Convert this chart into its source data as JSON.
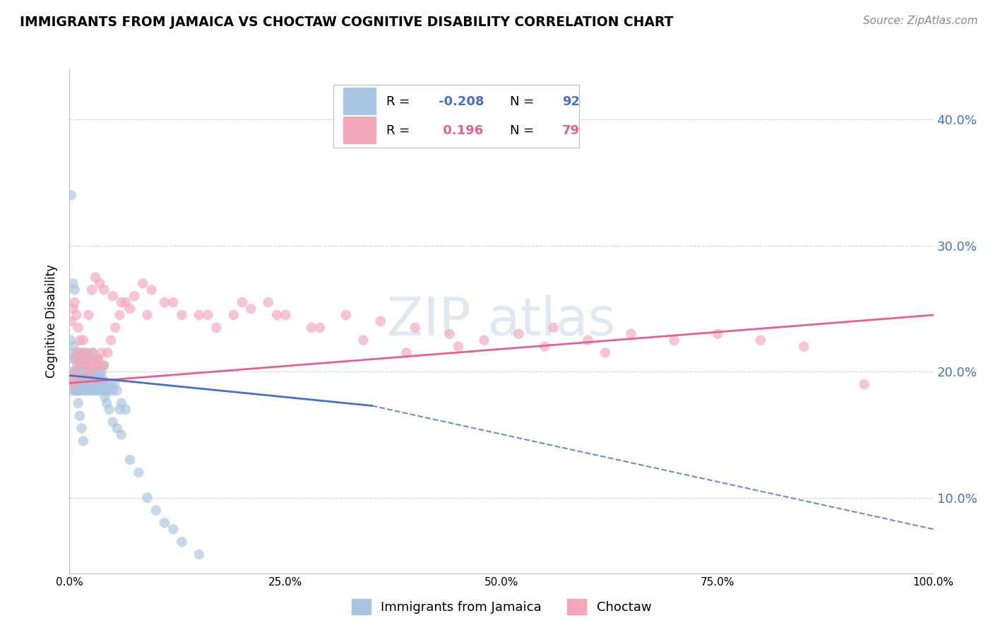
{
  "title": "IMMIGRANTS FROM JAMAICA VS CHOCTAW COGNITIVE DISABILITY CORRELATION CHART",
  "source": "Source: ZipAtlas.com",
  "ylabel": "Cognitive Disability",
  "xlim": [
    0.0,
    1.0
  ],
  "ylim": [
    0.04,
    0.44
  ],
  "xticks": [
    0.0,
    0.25,
    0.5,
    0.75,
    1.0
  ],
  "xtick_labels": [
    "0.0%",
    "25.0%",
    "50.0%",
    "75.0%",
    "100.0%"
  ],
  "yticks": [
    0.1,
    0.2,
    0.3,
    0.4
  ],
  "ytick_labels": [
    "10.0%",
    "20.0%",
    "30.0%",
    "40.0%"
  ],
  "blue_R": -0.208,
  "blue_N": 92,
  "pink_R": 0.196,
  "pink_N": 79,
  "blue_color": "#a8c4e0",
  "pink_color": "#f4a7b9",
  "blue_line_color": "#4472c4",
  "pink_line_color": "#e8608a",
  "legend_blue_label": "Immigrants from Jamaica",
  "legend_pink_label": "Choctaw",
  "watermark": "ZIPAtlas",
  "background_color": "#ffffff",
  "grid_color": "#cccccc",
  "right_axis_tick_color": "#4472c4",
  "blue_scatter_x": [
    0.001,
    0.002,
    0.003,
    0.004,
    0.005,
    0.006,
    0.007,
    0.008,
    0.009,
    0.01,
    0.011,
    0.012,
    0.013,
    0.014,
    0.015,
    0.016,
    0.017,
    0.018,
    0.019,
    0.02,
    0.021,
    0.022,
    0.023,
    0.024,
    0.025,
    0.026,
    0.027,
    0.028,
    0.029,
    0.03,
    0.031,
    0.032,
    0.033,
    0.034,
    0.035,
    0.036,
    0.037,
    0.038,
    0.039,
    0.04,
    0.042,
    0.044,
    0.046,
    0.048,
    0.05,
    0.052,
    0.055,
    0.058,
    0.06,
    0.065,
    0.001,
    0.003,
    0.005,
    0.007,
    0.009,
    0.011,
    0.013,
    0.015,
    0.017,
    0.019,
    0.021,
    0.023,
    0.025,
    0.027,
    0.029,
    0.031,
    0.033,
    0.035,
    0.037,
    0.039,
    0.041,
    0.043,
    0.046,
    0.05,
    0.055,
    0.06,
    0.07,
    0.08,
    0.09,
    0.1,
    0.11,
    0.12,
    0.13,
    0.15,
    0.002,
    0.004,
    0.006,
    0.008,
    0.01,
    0.012,
    0.014,
    0.016
  ],
  "blue_scatter_y": [
    0.195,
    0.19,
    0.185,
    0.2,
    0.21,
    0.195,
    0.185,
    0.19,
    0.2,
    0.185,
    0.19,
    0.195,
    0.185,
    0.195,
    0.19,
    0.2,
    0.185,
    0.195,
    0.19,
    0.185,
    0.2,
    0.19,
    0.195,
    0.185,
    0.19,
    0.195,
    0.185,
    0.2,
    0.19,
    0.185,
    0.195,
    0.19,
    0.185,
    0.2,
    0.195,
    0.185,
    0.19,
    0.195,
    0.19,
    0.185,
    0.185,
    0.19,
    0.185,
    0.19,
    0.185,
    0.19,
    0.185,
    0.17,
    0.175,
    0.17,
    0.225,
    0.215,
    0.22,
    0.21,
    0.205,
    0.215,
    0.21,
    0.205,
    0.215,
    0.21,
    0.215,
    0.21,
    0.205,
    0.215,
    0.2,
    0.205,
    0.21,
    0.205,
    0.2,
    0.205,
    0.18,
    0.175,
    0.17,
    0.16,
    0.155,
    0.15,
    0.13,
    0.12,
    0.1,
    0.09,
    0.08,
    0.075,
    0.065,
    0.055,
    0.34,
    0.27,
    0.265,
    0.185,
    0.175,
    0.165,
    0.155,
    0.145
  ],
  "pink_scatter_x": [
    0.001,
    0.003,
    0.005,
    0.007,
    0.009,
    0.011,
    0.013,
    0.015,
    0.017,
    0.019,
    0.021,
    0.023,
    0.025,
    0.027,
    0.029,
    0.031,
    0.033,
    0.035,
    0.037,
    0.04,
    0.044,
    0.048,
    0.053,
    0.058,
    0.065,
    0.075,
    0.085,
    0.095,
    0.11,
    0.13,
    0.15,
    0.17,
    0.19,
    0.21,
    0.23,
    0.25,
    0.28,
    0.32,
    0.36,
    0.4,
    0.44,
    0.48,
    0.52,
    0.56,
    0.6,
    0.65,
    0.7,
    0.75,
    0.8,
    0.85,
    0.002,
    0.004,
    0.006,
    0.008,
    0.01,
    0.012,
    0.014,
    0.016,
    0.018,
    0.022,
    0.026,
    0.03,
    0.035,
    0.04,
    0.05,
    0.06,
    0.07,
    0.09,
    0.12,
    0.16,
    0.2,
    0.24,
    0.29,
    0.34,
    0.39,
    0.45,
    0.55,
    0.62,
    0.92
  ],
  "pink_scatter_y": [
    0.195,
    0.19,
    0.2,
    0.21,
    0.215,
    0.205,
    0.195,
    0.21,
    0.205,
    0.195,
    0.21,
    0.205,
    0.2,
    0.215,
    0.21,
    0.205,
    0.21,
    0.205,
    0.215,
    0.205,
    0.215,
    0.225,
    0.235,
    0.245,
    0.255,
    0.26,
    0.27,
    0.265,
    0.255,
    0.245,
    0.245,
    0.235,
    0.245,
    0.25,
    0.255,
    0.245,
    0.235,
    0.245,
    0.24,
    0.235,
    0.23,
    0.225,
    0.23,
    0.235,
    0.225,
    0.23,
    0.225,
    0.23,
    0.225,
    0.22,
    0.24,
    0.25,
    0.255,
    0.245,
    0.235,
    0.225,
    0.215,
    0.225,
    0.215,
    0.245,
    0.265,
    0.275,
    0.27,
    0.265,
    0.26,
    0.255,
    0.25,
    0.245,
    0.255,
    0.245,
    0.255,
    0.245,
    0.235,
    0.225,
    0.215,
    0.22,
    0.22,
    0.215,
    0.19
  ],
  "blue_line_x0": 0.0,
  "blue_line_x_solid_end": 0.35,
  "blue_line_x1": 1.0,
  "blue_line_y0": 0.197,
  "blue_line_y_solid_end": 0.173,
  "blue_line_y1": 0.075,
  "pink_line_x0": 0.0,
  "pink_line_x1": 1.0,
  "pink_line_y0": 0.191,
  "pink_line_y1": 0.245
}
